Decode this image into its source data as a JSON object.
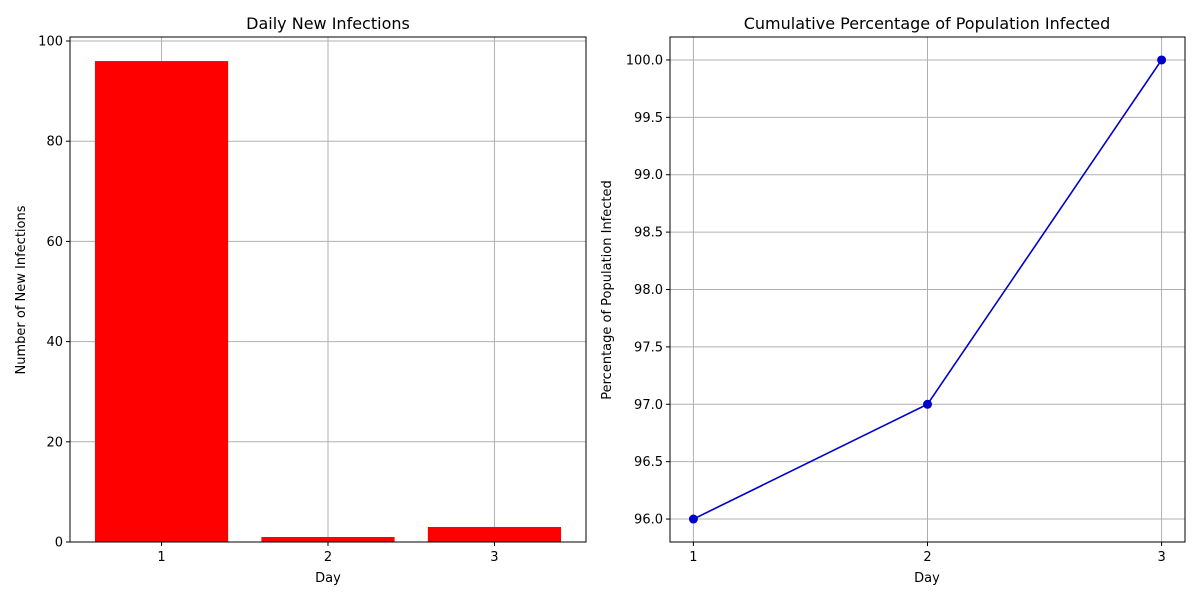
{
  "chart_data": [
    {
      "type": "bar",
      "title": "Daily New Infections",
      "xlabel": "Day",
      "ylabel": "Number of New Infections",
      "categories": [
        "1",
        "2",
        "3"
      ],
      "values": [
        96,
        1,
        3
      ],
      "xlim": [
        0.45,
        3.55
      ],
      "ylim": [
        0,
        100.8
      ],
      "yticks": [
        0,
        20,
        40,
        60,
        80,
        100
      ],
      "ytick_labels": [
        "0",
        "20",
        "40",
        "60",
        "80",
        "100"
      ],
      "xticks": [
        1,
        2,
        3
      ],
      "bar_width": 0.8,
      "color": "#ff0000",
      "grid": true
    },
    {
      "type": "line",
      "title": "Cumulative Percentage of Population Infected",
      "xlabel": "Day",
      "ylabel": "Percentage of Population Infected",
      "x": [
        1,
        2,
        3
      ],
      "y": [
        96.0,
        97.0,
        100.0
      ],
      "xlim": [
        0.9,
        3.1
      ],
      "ylim": [
        95.8,
        100.2
      ],
      "xticks": [
        1,
        2,
        3
      ],
      "xtick_labels": [
        "1",
        "2",
        "3"
      ],
      "yticks": [
        96.0,
        96.5,
        97.0,
        97.5,
        98.0,
        98.5,
        99.0,
        99.5,
        100.0
      ],
      "ytick_labels": [
        "96.0",
        "96.5",
        "97.0",
        "97.5",
        "98.0",
        "98.5",
        "99.0",
        "99.5",
        "100.0"
      ],
      "color": "#0000cc",
      "marker": "o",
      "grid": true
    }
  ]
}
